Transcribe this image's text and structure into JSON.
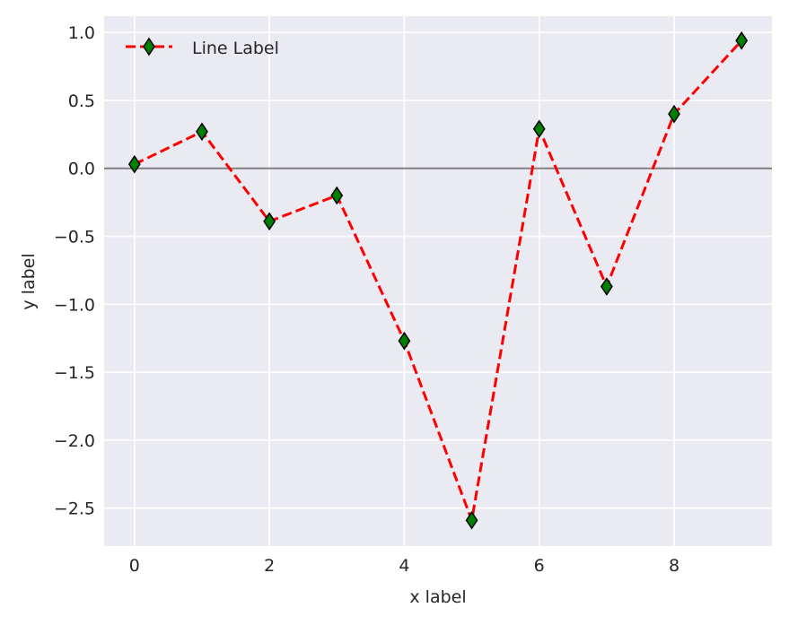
{
  "chart_data": {
    "type": "line",
    "title": "",
    "xlabel": "x label",
    "ylabel": "y label",
    "xlim": [
      -0.45,
      9.45
    ],
    "ylim": [
      -2.78,
      1.12
    ],
    "xticks": [
      0,
      2,
      4,
      6,
      8
    ],
    "xtick_labels": [
      "0",
      "2",
      "4",
      "6",
      "8"
    ],
    "yticks": [
      1.0,
      0.5,
      0.0,
      -0.5,
      -1.0,
      -1.5,
      -2.0,
      -2.5
    ],
    "ytick_labels": [
      "1.0",
      "0.5",
      "0.0",
      "−0.5",
      "−1.0",
      "−1.5",
      "−2.0",
      "−2.5"
    ],
    "grid": true,
    "legend_position": "top-left",
    "reference_line_y": 0.0,
    "series": [
      {
        "name": "Line Label",
        "x": [
          0,
          1,
          2,
          3,
          4,
          5,
          6,
          7,
          8,
          9
        ],
        "y": [
          0.03,
          0.27,
          -0.39,
          -0.2,
          -1.27,
          -2.59,
          0.29,
          -0.87,
          0.4,
          0.94
        ],
        "line_color": "#ff0000",
        "line_style": "dashed",
        "marker": "diamond",
        "marker_face": "#008000",
        "marker_edge": "#000000"
      }
    ]
  },
  "colors": {
    "plot_background": "#eaeaf2",
    "grid": "#ffffff",
    "reference_line": "#808080",
    "text": "#262626"
  }
}
